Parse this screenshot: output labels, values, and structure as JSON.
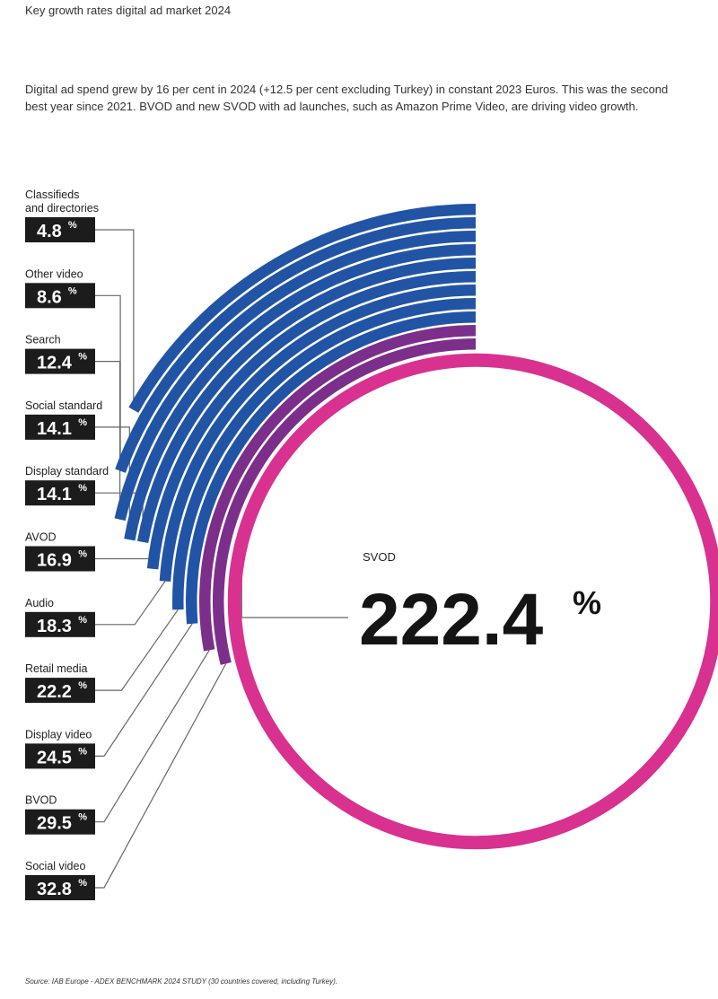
{
  "header": {
    "title": "Key growth rates digital ad market 2024",
    "description": "Digital ad spend grew by 16 per cent in 2024 (+12.5 per cent excluding Turkey) in constant 2023 Euros. This was the second best year since 2021. BVOD and new SVOD with ad launches, such as Amazon Prime Video, are driving video growth."
  },
  "footer": {
    "source": "Source: IAB Europe - ADEX BENCHMARK 2024 STUDY (30 countries covered, including Turkey)."
  },
  "colors": {
    "blue": "#2254a6",
    "purple": "#7b2f8a",
    "pink": "#d9318f",
    "label_bg": "#1c1c1c",
    "leader": "#666666"
  },
  "chart_data": {
    "type": "radial-bar",
    "title": "Key growth rates digital ad market 2024",
    "unit": "%",
    "percent_sign": "%",
    "series": [
      {
        "name": "Classifieds and directories",
        "label_lines": [
          "Classifieds",
          "and directories"
        ],
        "value": 4.8,
        "display": "4.8",
        "color": "blue"
      },
      {
        "name": "Other video",
        "label_lines": [
          "Other video"
        ],
        "value": 8.6,
        "display": "8.6",
        "color": "blue"
      },
      {
        "name": "Search",
        "label_lines": [
          "Search"
        ],
        "value": 12.4,
        "display": "12.4",
        "color": "blue"
      },
      {
        "name": "Social standard",
        "label_lines": [
          "Social standard"
        ],
        "value": 14.1,
        "display": "14.1",
        "color": "blue"
      },
      {
        "name": "Display standard",
        "label_lines": [
          "Display standard"
        ],
        "value": 14.1,
        "display": "14.1",
        "color": "blue"
      },
      {
        "name": "AVOD",
        "label_lines": [
          "AVOD"
        ],
        "value": 16.9,
        "display": "16.9",
        "color": "blue"
      },
      {
        "name": "Audio",
        "label_lines": [
          "Audio"
        ],
        "value": 18.3,
        "display": "18.3",
        "color": "blue"
      },
      {
        "name": "Retail media",
        "label_lines": [
          "Retail media"
        ],
        "value": 22.2,
        "display": "22.2",
        "color": "blue"
      },
      {
        "name": "Display video",
        "label_lines": [
          "Display video"
        ],
        "value": 24.5,
        "display": "24.5",
        "color": "blue"
      },
      {
        "name": "BVOD",
        "label_lines": [
          "BVOD"
        ],
        "value": 29.5,
        "display": "29.5",
        "color": "purple"
      },
      {
        "name": "Social video",
        "label_lines": [
          "Social video"
        ],
        "value": 32.8,
        "display": "32.8",
        "color": "purple"
      }
    ],
    "highlight": {
      "name": "SVOD",
      "value": 222.4,
      "display": "222.4",
      "color": "pink"
    }
  }
}
